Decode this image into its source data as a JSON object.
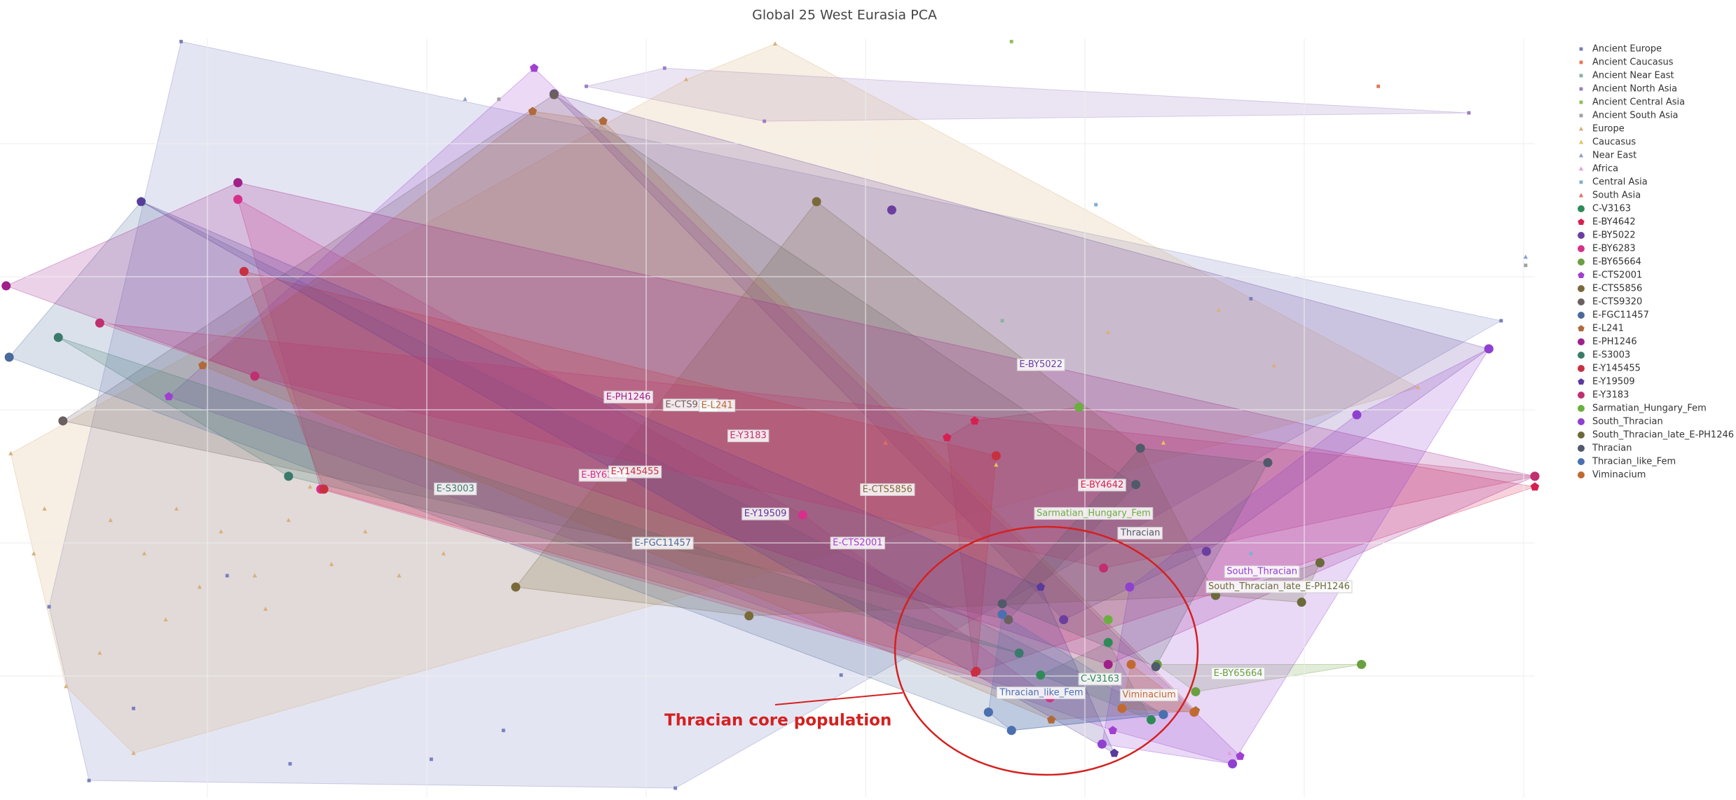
{
  "chart_data": {
    "type": "scatter",
    "title": "Global 25 West Eurasia PCA",
    "annotation": "Thracian core population",
    "xlim": [
      0,
      100
    ],
    "ylim": [
      0,
      100
    ],
    "grid": true,
    "legend": "right",
    "hulls": true,
    "series": [
      {
        "name": "Ancient Europe",
        "color": "#7a7fc0",
        "marker": "square",
        "x": [
          11.8,
          3.2,
          5.8,
          18.9,
          28.1,
          44.0,
          32.8,
          81.5,
          97.8,
          14.8,
          8.7,
          54.8
        ],
        "y": [
          99.6,
          25.1,
          2.2,
          4.4,
          5.0,
          1.2,
          8.8,
          65.7,
          62.8,
          29.2,
          11.7,
          16.1
        ]
      },
      {
        "name": "Ancient Caucasus",
        "color": "#e07b54",
        "marker": "square",
        "x": [
          89.8,
          39.3
        ],
        "y": [
          93.7,
          89.1
        ]
      },
      {
        "name": "Ancient Near East",
        "color": "#8cb0a0",
        "marker": "square",
        "x": [
          65.3,
          88.7
        ],
        "y": [
          62.8,
          17.5
        ]
      },
      {
        "name": "Ancient North Asia",
        "color": "#9b7fc4",
        "marker": "square",
        "x": [
          38.2,
          43.3,
          49.8,
          95.7
        ],
        "y": [
          93.7,
          96.1,
          89.1,
          90.2
        ]
      },
      {
        "name": "Ancient Central Asia",
        "color": "#8fc05a",
        "marker": "square",
        "x": [
          65.9,
          88.9
        ],
        "y": [
          99.6,
          17.5
        ]
      },
      {
        "name": "Ancient South Asia",
        "color": "#a0a0a0",
        "marker": "square",
        "x": [
          32.5,
          99.4
        ],
        "y": [
          92.0,
          70.1
        ]
      },
      {
        "name": "Europe",
        "color": "#d9b07a",
        "marker": "triangle",
        "x": [
          0.7,
          2.9,
          7.2,
          9.4,
          11.5,
          14.4,
          16.6,
          18.8,
          21.6,
          23.8,
          26.0,
          28.9,
          10.8,
          6.5,
          4.3,
          8.7,
          13.0,
          17.3,
          2.2,
          72.2,
          83.0,
          92.4,
          79.4,
          50.5,
          44.7,
          20.2
        ],
        "y": [
          45.3,
          38.0,
          36.5,
          32.1,
          38.0,
          35.0,
          29.2,
          36.5,
          30.7,
          35.0,
          29.2,
          32.1,
          23.4,
          19.0,
          14.6,
          5.8,
          27.7,
          24.8,
          32.1,
          61.3,
          56.9,
          54.0,
          64.2,
          99.3,
          94.6,
          40.9
        ]
      },
      {
        "name": "Caucasus",
        "color": "#e8c060",
        "marker": "triangle",
        "x": [
          75.8,
          64.9
        ],
        "y": [
          46.7,
          43.8
        ]
      },
      {
        "name": "Near East",
        "color": "#8aa0d0",
        "marker": "triangle",
        "x": [
          30.3,
          99.4
        ],
        "y": [
          92.0,
          71.2
        ]
      },
      {
        "name": "Africa",
        "color": "#e0a0e0",
        "marker": "triangle",
        "x": [
          80.1
        ],
        "y": [
          5.8
        ]
      },
      {
        "name": "Central Asia",
        "color": "#7fb0d0",
        "marker": "square",
        "x": [
          71.4,
          81.5
        ],
        "y": [
          78.1,
          32.1
        ]
      },
      {
        "name": "South Asia",
        "color": "#e07060",
        "marker": "triangle",
        "x": [
          57.7
        ],
        "y": [
          46.7
        ]
      },
      {
        "name": "C-V3163",
        "color": "#2e8b57",
        "marker": "circle",
        "x": [
          75.0,
          67.8,
          72.2
        ],
        "y": [
          10.2,
          16.1,
          20.4
        ]
      },
      {
        "name": "E-BY4642",
        "color": "#d62050",
        "marker": "pentagon",
        "x": [
          63.5,
          61.7,
          63.5,
          70.3,
          100
        ],
        "y": [
          49.6,
          47.4,
          16.4,
          51.4,
          40.9
        ]
      },
      {
        "name": "E-BY5022",
        "color": "#6a3fa0",
        "marker": "circle",
        "x": [
          58.1,
          36.1,
          97.0,
          78.6,
          69.3
        ],
        "y": [
          77.4,
          92.7,
          59.1,
          32.4,
          23.4
        ]
      },
      {
        "name": "E-BY6283",
        "color": "#d6308a",
        "marker": "circle",
        "x": [
          15.5,
          20.9,
          52.3,
          68.4
        ],
        "y": [
          78.8,
          40.6,
          37.2,
          13.1
        ]
      },
      {
        "name": "E-BY65664",
        "color": "#6aa040",
        "marker": "circle",
        "x": [
          77.9,
          88.7,
          75.4
        ],
        "y": [
          13.9,
          17.5,
          17.5
        ]
      },
      {
        "name": "E-CTS2001",
        "color": "#a040d0",
        "marker": "pentagon",
        "x": [
          34.8,
          11.0,
          80.3,
          80.8,
          72.5
        ],
        "y": [
          96.1,
          52.8,
          4.4,
          5.4,
          8.8
        ]
      },
      {
        "name": "E-CTS5856",
        "color": "#7a6a3a",
        "marker": "circle",
        "x": [
          53.2,
          33.6,
          48.8,
          74.3,
          79.2
        ],
        "y": [
          78.5,
          27.7,
          23.9,
          46.0,
          26.6
        ]
      },
      {
        "name": "E-CTS9320",
        "color": "#6a6060",
        "marker": "circle",
        "x": [
          36.1,
          4.1,
          74.0,
          65.7
        ],
        "y": [
          92.6,
          49.6,
          41.2,
          23.4
        ]
      },
      {
        "name": "E-FGC11457",
        "color": "#4a6a9a",
        "marker": "circle",
        "x": [
          9.2,
          0.6,
          64.4,
          65.9,
          75.8
        ],
        "y": [
          78.5,
          58.0,
          11.2,
          8.8,
          10.9
        ]
      },
      {
        "name": "E-L241",
        "color": "#b06a3a",
        "marker": "pentagon",
        "x": [
          34.7,
          39.3,
          13.2,
          68.5,
          77.9
        ],
        "y": [
          90.4,
          89.1,
          56.9,
          10.2,
          11.4
        ]
      },
      {
        "name": "E-PH1246",
        "color": "#a0208a",
        "marker": "circle",
        "x": [
          15.5,
          0.4,
          16.6,
          72.2,
          100
        ],
        "y": [
          81.0,
          67.4,
          55.5,
          17.5,
          42.3
        ]
      },
      {
        "name": "E-S3003",
        "color": "#3a7a6a",
        "marker": "circle",
        "x": [
          3.8,
          18.8,
          66.4
        ],
        "y": [
          60.6,
          42.3,
          19.0
        ]
      },
      {
        "name": "E-Y145455",
        "color": "#c83040",
        "marker": "circle",
        "x": [
          15.9,
          21.1,
          63.6,
          64.9
        ],
        "y": [
          69.3,
          40.6,
          16.6,
          45.0
        ]
      },
      {
        "name": "E-Y19509",
        "color": "#5a3a9a",
        "marker": "pentagon",
        "x": [
          9.2,
          72.6,
          67.8
        ],
        "y": [
          78.5,
          5.8,
          27.7
        ]
      },
      {
        "name": "E-Y3183",
        "color": "#c03070",
        "marker": "circle",
        "x": [
          6.5,
          16.6,
          71.9,
          100
        ],
        "y": [
          62.5,
          55.5,
          30.2,
          42.3
        ]
      },
      {
        "name": "Sarmatian_Hungary_Fem",
        "color": "#6ab040",
        "marker": "circle",
        "x": [
          70.3,
          72.2
        ],
        "y": [
          51.4,
          23.4
        ]
      },
      {
        "name": "South_Thracian",
        "color": "#9040d0",
        "marker": "circle",
        "x": [
          88.4,
          97.0,
          73.6,
          80.3,
          71.8
        ],
        "y": [
          50.4,
          59.1,
          27.7,
          4.4,
          7.0
        ]
      },
      {
        "name": "South_Thracian_late_E-PH1246",
        "color": "#6a6a3a",
        "marker": "circle",
        "x": [
          79.2,
          86.0,
          84.8
        ],
        "y": [
          26.6,
          30.9,
          25.7
        ]
      },
      {
        "name": "Thracian",
        "color": "#505a6a",
        "marker": "circle",
        "x": [
          74.3,
          74.0,
          82.6,
          75.3,
          65.3
        ],
        "y": [
          46.0,
          41.2,
          44.1,
          17.2,
          25.5
        ]
      },
      {
        "name": "Thracian_like_Fem",
        "color": "#4a70b0",
        "marker": "circle",
        "x": [
          64.4,
          65.9,
          75.8,
          65.3
        ],
        "y": [
          11.2,
          8.8,
          10.9,
          24.1
        ]
      },
      {
        "name": "Viminacium",
        "color": "#c06a30",
        "marker": "circle",
        "x": [
          77.8,
          73.7,
          73.1
        ],
        "y": [
          11.2,
          17.5,
          11.7
        ]
      }
    ]
  }
}
